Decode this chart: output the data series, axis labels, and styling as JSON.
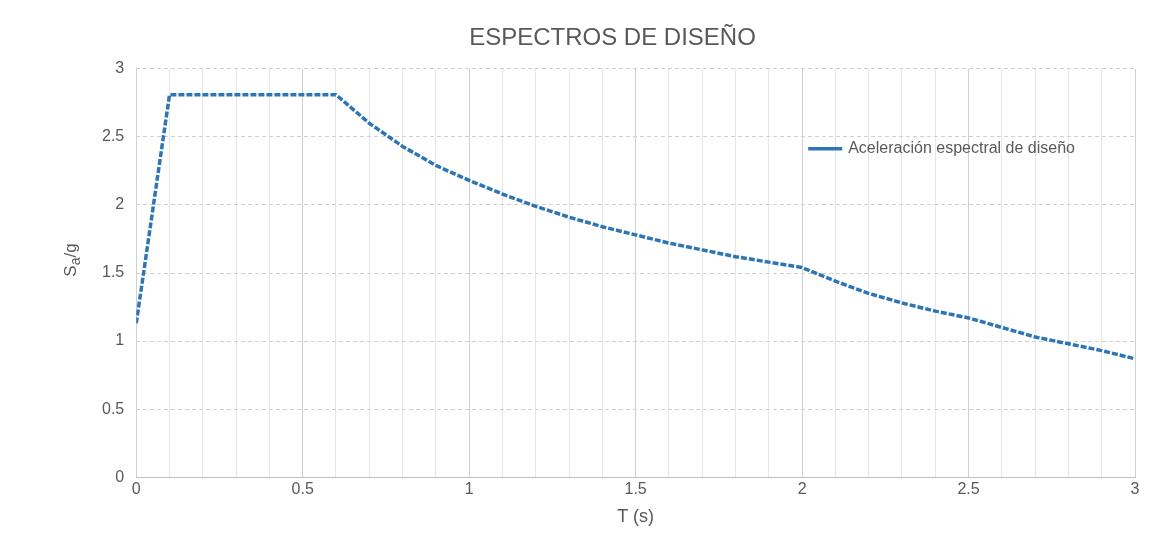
{
  "chart_data": {
    "type": "line",
    "title": "ESPECTROS DE DISEÑO",
    "xlabel": "T (s)",
    "ylabel": "S$_{a}$/g",
    "xlim": [
      0,
      3
    ],
    "ylim": [
      0,
      3
    ],
    "xticks": [
      0,
      {
        "value": 0.1,
        "label": null
      },
      {
        "value": 0.2,
        "label": null
      },
      {
        "value": 0.3,
        "label": null
      },
      {
        "value": 0.4,
        "label": null
      },
      0.5,
      {
        "value": 0.6,
        "label": null
      },
      {
        "value": 0.7,
        "label": null
      },
      {
        "value": 0.8,
        "label": null
      },
      {
        "value": 0.9,
        "label": null
      },
      1,
      {
        "value": 1.1,
        "label": null
      },
      {
        "value": 1.2,
        "label": null
      },
      {
        "value": 1.3,
        "label": null
      },
      {
        "value": 1.4,
        "label": null
      },
      1.5,
      {
        "value": 1.6,
        "label": null
      },
      {
        "value": 1.7,
        "label": null
      },
      {
        "value": 1.8,
        "label": null
      },
      {
        "value": 1.9,
        "label": null
      },
      2,
      {
        "value": 2.1,
        "label": null
      },
      {
        "value": 2.2,
        "label": null
      },
      {
        "value": 2.3,
        "label": null
      },
      {
        "value": 2.4,
        "label": null
      },
      2.5,
      {
        "value": 2.6,
        "label": null
      },
      {
        "value": 2.7,
        "label": null
      },
      {
        "value": 2.8,
        "label": null
      },
      {
        "value": 2.9,
        "label": null
      },
      3
    ],
    "yticks": [
      0,
      0.5,
      1,
      1.5,
      2,
      2.5,
      3
    ],
    "grid": true,
    "legend": "top right",
    "line_style": "dashed",
    "marker": "none",
    "x": [
      0,
      0.1,
      0.6,
      0.7,
      0.8,
      0.9,
      1.0,
      1.1,
      1.2,
      1.3,
      1.4,
      1.5,
      1.6,
      1.7,
      1.8,
      1.9,
      2.0,
      2.1,
      2.2,
      2.3,
      2.4,
      2.5,
      2.6,
      2.7,
      2.8,
      2.9,
      3.0
    ],
    "series": [
      {
        "name": "Aceleración espectral de diseño",
        "color": "#2e75b6",
        "values": [
          1.13,
          2.81,
          2.81,
          2.6,
          2.43,
          2.29,
          2.18,
          2.08,
          1.99,
          1.91,
          1.84,
          1.78,
          1.72,
          1.67,
          1.62,
          1.58,
          1.54,
          1.44,
          1.35,
          1.28,
          1.22,
          1.17,
          1.1,
          1.03,
          0.98,
          0.93,
          0.87
        ]
      }
    ]
  }
}
